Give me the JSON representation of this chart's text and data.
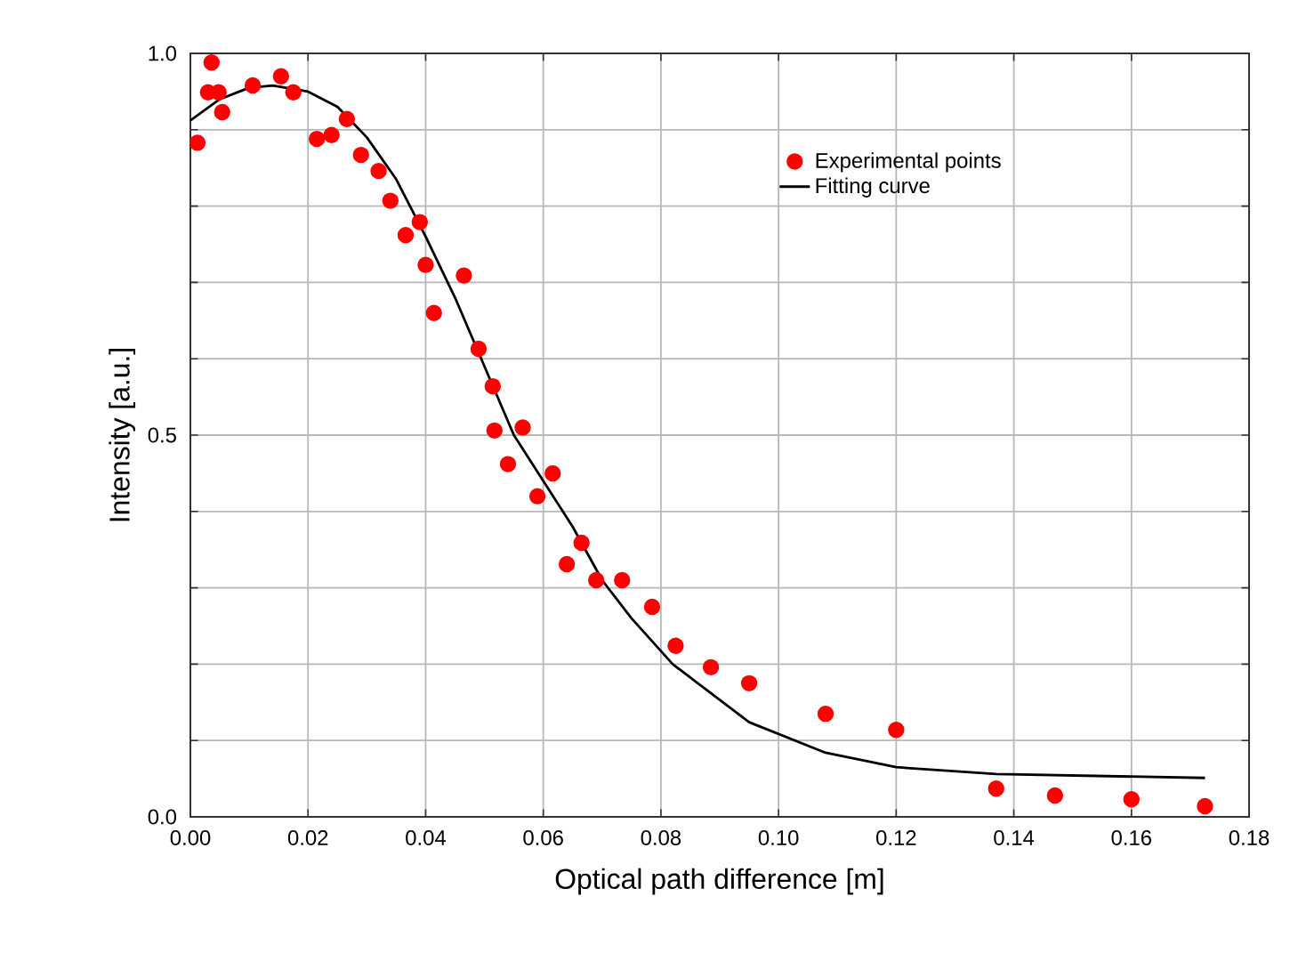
{
  "chart_data": {
    "type": "scatter",
    "xlabel": "Optical path difference [m]",
    "ylabel": "Intensity [a.u.]",
    "xlim": [
      0,
      0.18
    ],
    "ylim": [
      0,
      1.0
    ],
    "xticks": [
      {
        "value": 0,
        "label": "0.00"
      },
      {
        "value": 0.02,
        "label": "0.02"
      },
      {
        "value": 0.04,
        "label": "0.04"
      },
      {
        "value": 0.06,
        "label": "0.06"
      },
      {
        "value": 0.08,
        "label": "0.08"
      },
      {
        "value": 0.1,
        "label": "0.10"
      },
      {
        "value": 0.12,
        "label": "0.12"
      },
      {
        "value": 0.14,
        "label": "0.14"
      },
      {
        "value": 0.16,
        "label": "0.16"
      },
      {
        "value": 0.18,
        "label": "0.18"
      }
    ],
    "yticks": [
      {
        "value": 0,
        "label": "0.0"
      },
      {
        "value": 0.1,
        "label": null
      },
      {
        "value": 0.2,
        "label": null
      },
      {
        "value": 0.3,
        "label": null
      },
      {
        "value": 0.4,
        "label": null
      },
      {
        "value": 0.5,
        "label": "0.5"
      },
      {
        "value": 0.6,
        "label": null
      },
      {
        "value": 0.7,
        "label": null
      },
      {
        "value": 0.8,
        "label": null
      },
      {
        "value": 0.9,
        "label": null
      },
      {
        "value": 1.0,
        "label": "1.0"
      }
    ],
    "grid": true,
    "legend": "top right",
    "series": [
      {
        "name": "Experimental points",
        "marker": "circle",
        "color": "#ff0000",
        "x": [
          0.0012,
          0.003,
          0.0036,
          0.0048,
          0.0054,
          0.0106,
          0.0154,
          0.0175,
          0.0215,
          0.024,
          0.0266,
          0.029,
          0.032,
          0.034,
          0.0366,
          0.039,
          0.04,
          0.0414,
          0.0465,
          0.049,
          0.0514,
          0.0517,
          0.054,
          0.0565,
          0.059,
          0.0616,
          0.064,
          0.0665,
          0.069,
          0.0734,
          0.0785,
          0.0825,
          0.0885,
          0.095,
          0.108,
          0.12,
          0.137,
          0.147,
          0.16,
          0.1725
        ],
        "values": [
          0.883,
          0.949,
          0.988,
          0.949,
          0.923,
          0.958,
          0.97,
          0.949,
          0.888,
          0.893,
          0.914,
          0.867,
          0.846,
          0.807,
          0.762,
          0.779,
          0.723,
          0.66,
          0.709,
          0.613,
          0.564,
          0.506,
          0.462,
          0.51,
          0.42,
          0.45,
          0.331,
          0.359,
          0.31,
          0.31,
          0.275,
          0.224,
          0.196,
          0.175,
          0.135,
          0.114,
          0.037,
          0.028,
          0.023,
          0.014
        ]
      },
      {
        "name": "Fitting curve",
        "type": "line",
        "marker": "none",
        "line_style": "solid",
        "color": "#000000",
        "x": [
          0,
          0.005,
          0.01,
          0.014,
          0.02,
          0.025,
          0.03,
          0.035,
          0.04,
          0.045,
          0.05,
          0.055,
          0.06,
          0.065,
          0.07,
          0.075,
          0.082,
          0.095,
          0.108,
          0.12,
          0.137,
          0.1725
        ],
        "values": [
          0.912,
          0.94,
          0.955,
          0.958,
          0.95,
          0.93,
          0.89,
          0.835,
          0.76,
          0.68,
          0.59,
          0.5,
          0.44,
          0.38,
          0.31,
          0.26,
          0.2,
          0.124,
          0.084,
          0.065,
          0.056,
          0.051
        ]
      }
    ]
  }
}
